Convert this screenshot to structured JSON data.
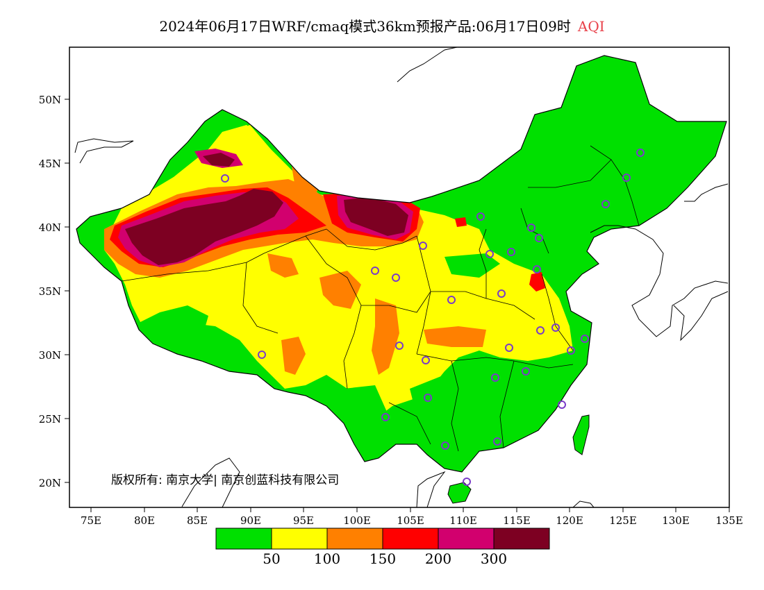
{
  "title": {
    "main": "2024年06月17日WRF/cmaq模式36km预报产品:06月17日09时",
    "variable": "AQI"
  },
  "copyright": "版权所有: 南京大学| 南京创蓝科技有限公司",
  "axes": {
    "lat_labels": [
      "50N",
      "45N",
      "40N",
      "35N",
      "30N",
      "25N",
      "20N"
    ],
    "lon_labels": [
      "75E",
      "80E",
      "85E",
      "90E",
      "95E",
      "100E",
      "105E",
      "110E",
      "115E",
      "120E",
      "125E",
      "130E",
      "135E"
    ]
  },
  "legend": {
    "colors": [
      "#00e000",
      "#ffff00",
      "#ff8000",
      "#ff0000",
      "#d2006e",
      "#7d0022"
    ],
    "labels": [
      "50",
      "100",
      "150",
      "200",
      "300"
    ]
  },
  "colors": {
    "good": "#00e000",
    "moderate": "#ffff00",
    "usg": "#ff8000",
    "unhealthy": "#ff0000",
    "very_unhealthy": "#d2006e",
    "hazardous": "#7d0022",
    "station_marker": "#7a3cc8"
  }
}
